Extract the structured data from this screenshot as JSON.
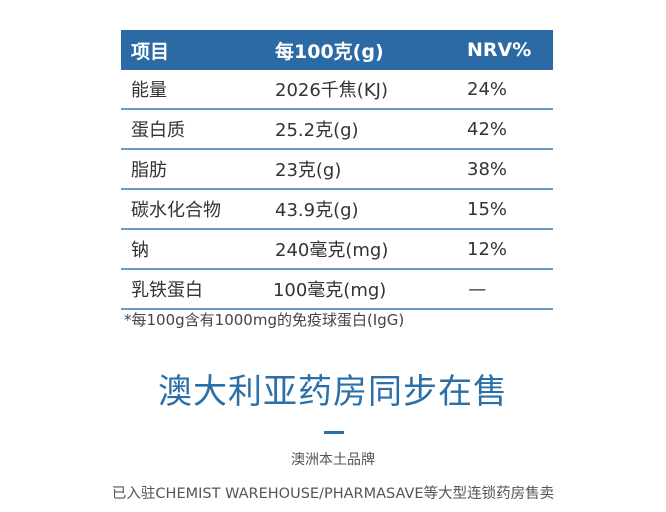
{
  "table": {
    "headers": [
      "项目",
      "每100克(g)",
      "NRV%"
    ],
    "rows": [
      [
        "能量",
        "2026千焦(KJ)",
        "24%"
      ],
      [
        "蛋白质",
        "25.2克(g)",
        "42%"
      ],
      [
        "脂肪",
        "23克(g)",
        "38%"
      ],
      [
        "碳水化合物",
        "43.9克(g)",
        "15%"
      ],
      [
        "钠",
        "240毫克(mg)",
        "12%"
      ],
      [
        "乳铁蛋白",
        "100毫克(mg)",
        "—"
      ]
    ]
  },
  "note": "*每100g含有1000mg的免疫球蛋白(IgG)",
  "headline": "澳大利亚药房同步在售",
  "subtitle": "澳洲本土品牌",
  "description": "已入驻CHEMIST WAREHOUSE/PHARMASAVE等大型连锁药房售卖",
  "colors": {
    "accent": "#2b6aa5",
    "divider": "#6c9cc6"
  }
}
